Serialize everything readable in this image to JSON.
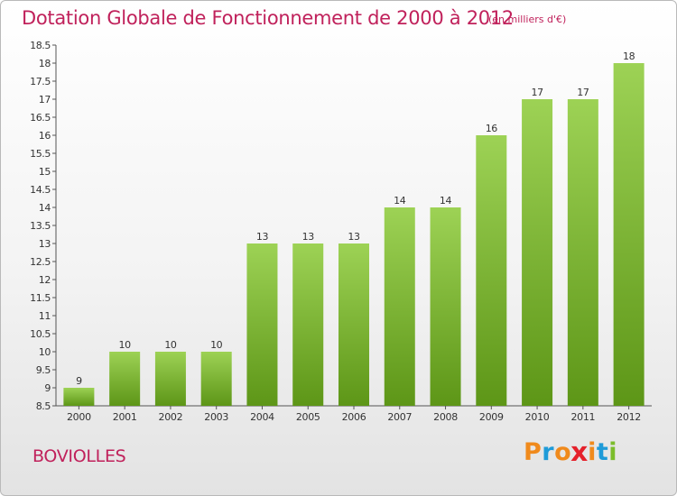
{
  "title": "Dotation Globale de Fonctionnement de 2000 à 2012",
  "subtitle": "(en milliers d'€)",
  "commune": "BOVIOLLES",
  "logo": {
    "text": "Proxiti",
    "letters": [
      "P",
      "r",
      "o",
      "x",
      "i",
      "t",
      "i"
    ],
    "colors": [
      "#f08a1c",
      "#1f9bd8",
      "#f08a1c",
      "#e5212b",
      "#f08a1c",
      "#1f9bd8",
      "#7bbd2b"
    ]
  },
  "colors": {
    "accent": "#c0215b",
    "bar_top": "#9dd255",
    "bar_bottom": "#5d9617",
    "text": "#333333"
  },
  "chart_data": {
    "type": "bar",
    "categories": [
      "2000",
      "2001",
      "2002",
      "2003",
      "2004",
      "2005",
      "2006",
      "2007",
      "2008",
      "2009",
      "2010",
      "2011",
      "2012"
    ],
    "values": [
      9,
      10,
      10,
      10,
      13,
      13,
      13,
      14,
      14,
      16,
      17,
      17,
      18
    ],
    "data_labels": [
      "9",
      "10",
      "10",
      "10",
      "13",
      "13",
      "13",
      "14",
      "14",
      "16",
      "17",
      "17",
      "18"
    ],
    "ylim": [
      8.5,
      18.5
    ],
    "yticks": [
      "8.5",
      "9",
      "9.5",
      "10",
      "10.5",
      "11",
      "11.5",
      "12",
      "12.5",
      "13",
      "13.5",
      "14",
      "14.5",
      "15",
      "15.5",
      "16",
      "16.5",
      "17",
      "17.5",
      "18",
      "18.5"
    ],
    "xlabel": "",
    "ylabel": "",
    "grid": false,
    "legend": "none"
  }
}
